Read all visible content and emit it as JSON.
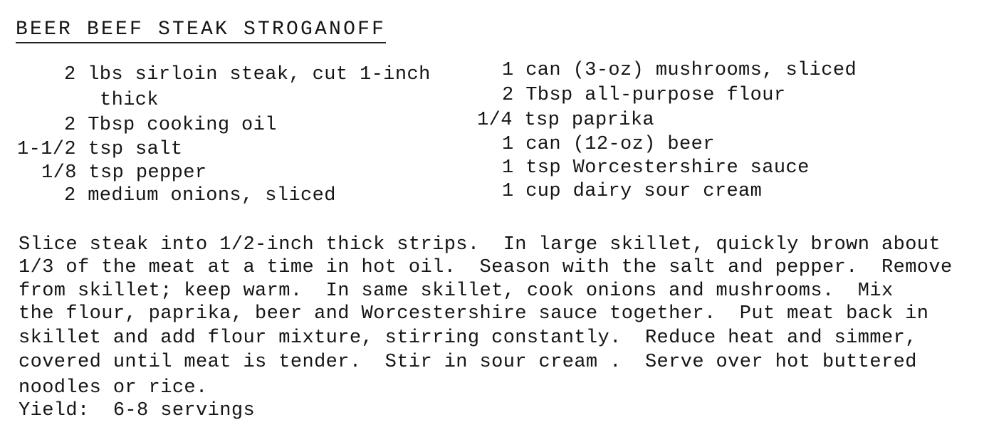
{
  "title": "BEER BEEF STEAK STROGANOFF",
  "ingredients_left": [
    "2 lbs sirloin steak, cut 1-inch",
    "thick",
    "2 Tbsp cooking oil",
    "1-1/2 tsp salt",
    "1/8 tsp pepper",
    "2 medium onions, sliced"
  ],
  "ingredients_right": [
    "1 can (3-oz) mushrooms, sliced",
    "2 Tbsp all-purpose flour",
    "1/4 tsp paprika",
    "1 can (12-oz) beer",
    "1 tsp Worcestershire sauce",
    "1 cup dairy sour cream"
  ],
  "directions": [
    "Slice steak into 1/2-inch thick strips.  In large skillet, quickly brown about",
    "1/3 of the meat at a time in hot oil.  Season with the salt and pepper.  Remove",
    "from skillet; keep warm.  In same skillet, cook onions and mushrooms.  Mix",
    "the flour, paprika, beer and Worcestershire sauce together.  Put meat back in",
    "skillet and add flour mixture, stirring constantly.  Reduce heat and simmer,",
    "covered until meat is tender.  Stir in sour cream .  Serve over hot buttered",
    "noodles or rice."
  ],
  "yield": "Yield:  6-8 servings"
}
